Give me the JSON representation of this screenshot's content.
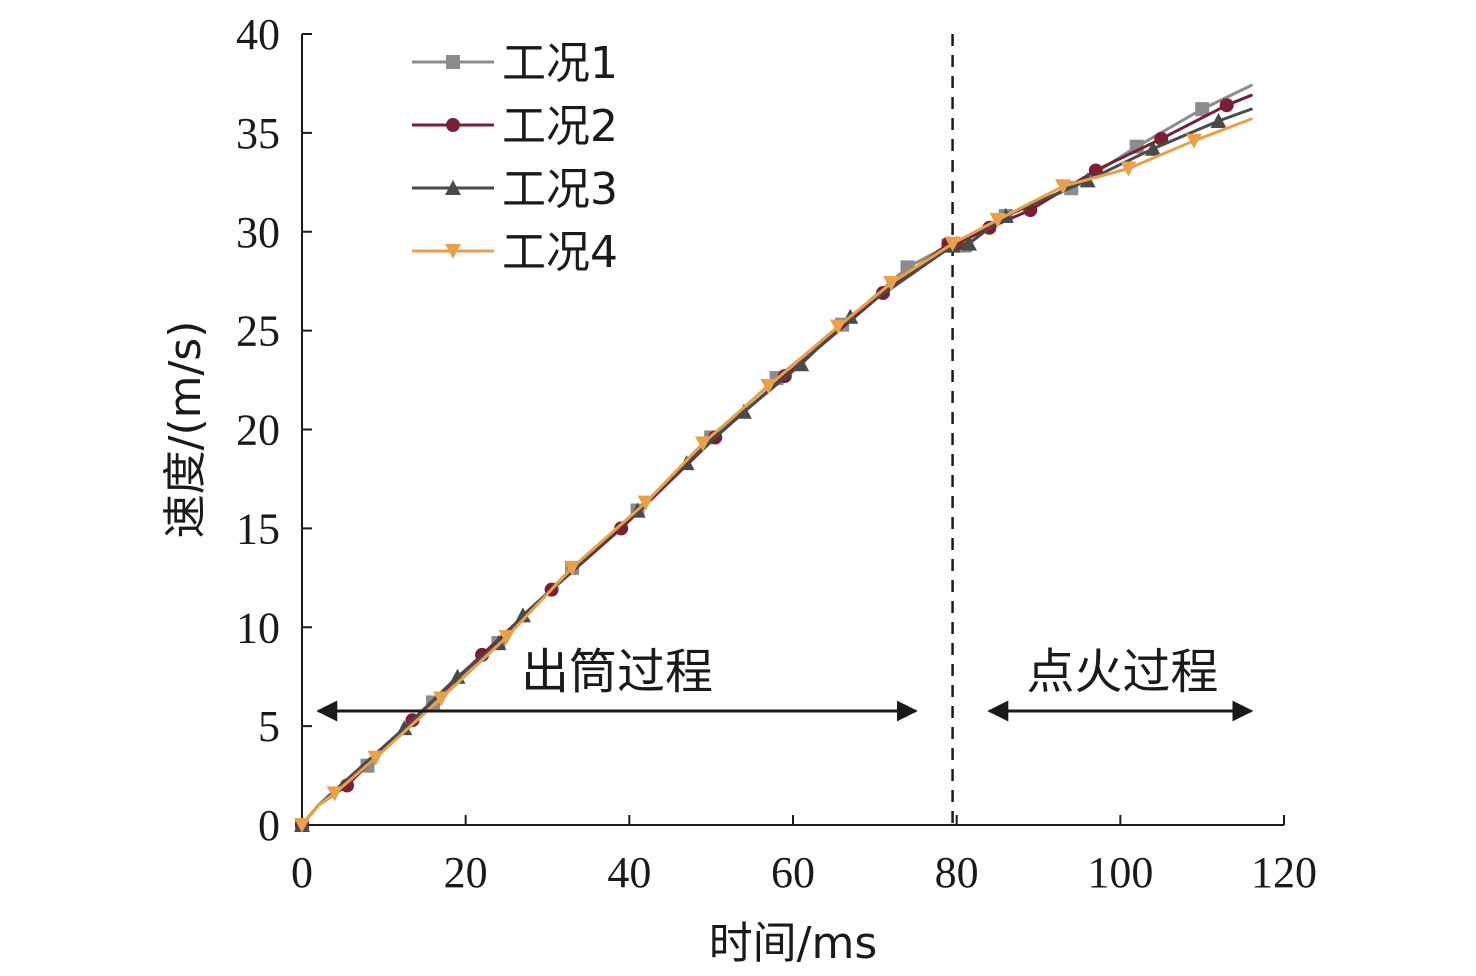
{
  "chart_data": {
    "type": "line",
    "xlabel": "时间/ms",
    "ylabel": "速度/(m/s)",
    "xlim": [
      0,
      120
    ],
    "ylim": [
      0,
      40
    ],
    "xticks": [
      0,
      20,
      40,
      60,
      80,
      100,
      120
    ],
    "yticks": [
      0,
      5,
      10,
      15,
      20,
      25,
      30,
      35,
      40
    ],
    "grid": false,
    "legend_position": "top-left",
    "series": [
      {
        "name": "工况1",
        "color": "#8c8c8c",
        "marker": "square",
        "x": [
          0,
          2,
          8,
          16,
          24,
          33,
          41,
          50,
          58,
          66,
          74,
          79,
          81,
          86,
          94,
          102,
          110,
          116
        ],
        "y": [
          0,
          1.0,
          3.0,
          6.2,
          9.2,
          13.0,
          15.9,
          19.6,
          22.6,
          25.3,
          28.2,
          29.3,
          29.3,
          30.8,
          32.2,
          34.3,
          36.2,
          37.4
        ]
      },
      {
        "name": "工况2",
        "color": "#7a2035",
        "marker": "circle",
        "x": [
          0,
          2,
          5.5,
          13.5,
          22,
          30.5,
          39,
          50.5,
          59,
          71,
          79,
          80,
          84,
          89,
          97,
          105,
          113,
          116
        ],
        "y": [
          0,
          1.0,
          2.0,
          5.3,
          8.6,
          11.9,
          15.0,
          19.6,
          22.7,
          26.9,
          29.4,
          29.4,
          30.2,
          31.1,
          33.1,
          34.7,
          36.4,
          36.9
        ]
      },
      {
        "name": "工况3",
        "color": "#4a4a4a",
        "marker": "triangle-up",
        "x": [
          0,
          2,
          12.5,
          19,
          24,
          27,
          41,
          47,
          54,
          61,
          67,
          79.5,
          81.5,
          86,
          96,
          104,
          112,
          116
        ],
        "y": [
          0,
          1.0,
          4.9,
          7.5,
          9.2,
          10.6,
          15.9,
          18.3,
          20.9,
          23.3,
          25.7,
          29.3,
          29.4,
          30.8,
          32.6,
          34.2,
          35.6,
          36.2
        ]
      },
      {
        "name": "工况4",
        "color": "#e8a04a",
        "marker": "triangle-down",
        "x": [
          0,
          2,
          4,
          9,
          17,
          25,
          33,
          42,
          49,
          57,
          65.5,
          72,
          79.5,
          85,
          93,
          101,
          109,
          116
        ],
        "y": [
          0,
          1.0,
          1.6,
          3.4,
          6.4,
          9.5,
          13.0,
          16.3,
          19.3,
          22.2,
          25.2,
          27.4,
          29.4,
          30.6,
          32.3,
          33.2,
          34.6,
          35.7
        ]
      }
    ],
    "reference_line": {
      "x": 79.5,
      "style": "dashed"
    },
    "annotations": [
      {
        "text": "出筒过程",
        "x_from": 2,
        "x_to": 75,
        "y": 5.6
      },
      {
        "text": "点火过程",
        "x_from": 84,
        "x_to": 116,
        "y": 5.6
      }
    ]
  }
}
